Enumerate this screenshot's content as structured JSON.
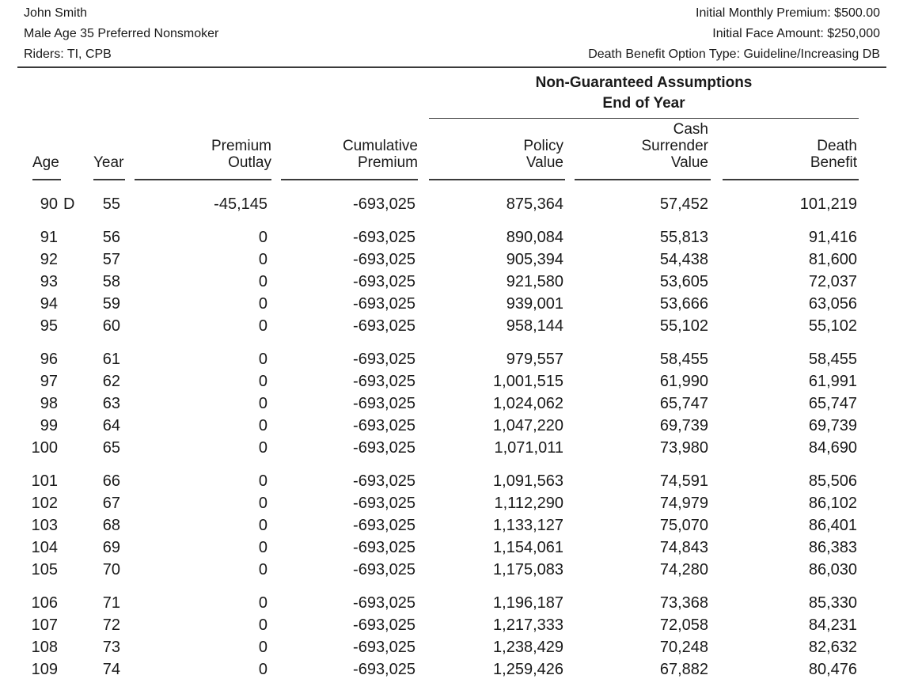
{
  "colors": {
    "text": "#1a1a1a",
    "rule": "#3a3a3a",
    "background": "#ffffff"
  },
  "policy_header": {
    "insured_name": "John Smith",
    "insured_profile": "Male Age 35 Preferred Nonsmoker",
    "riders": "Riders: TI, CPB",
    "initial_monthly_premium": "Initial Monthly Premium: $500.00",
    "initial_face_amount": "Initial Face Amount: $250,000",
    "death_benefit_option_type": "Death Benefit Option Type: Guideline/Increasing DB"
  },
  "table": {
    "span_header": {
      "title": "Non-Guaranteed Assumptions",
      "subtitle": "End of Year"
    },
    "columns": [
      {
        "key": "age",
        "label": "Age"
      },
      {
        "key": "year",
        "label": "Year"
      },
      {
        "key": "premium_outlay",
        "label": "Premium\nOutlay"
      },
      {
        "key": "cumulative_premium",
        "label": "Cumulative\nPremium"
      },
      {
        "key": "policy_value",
        "label": "Policy\nValue"
      },
      {
        "key": "cash_surrender_value",
        "label": "Cash\nSurrender\nValue"
      },
      {
        "key": "death_benefit",
        "label": "Death\nBenefit"
      }
    ],
    "row_groups": [
      {
        "rows": [
          {
            "age": "90",
            "flag": "D",
            "year": "55",
            "premium_outlay": "-45,145",
            "cumulative_premium": "-693,025",
            "policy_value": "875,364",
            "cash_surrender_value": "57,452",
            "death_benefit": "101,219"
          }
        ]
      },
      {
        "rows": [
          {
            "age": "91",
            "flag": "",
            "year": "56",
            "premium_outlay": "0",
            "cumulative_premium": "-693,025",
            "policy_value": "890,084",
            "cash_surrender_value": "55,813",
            "death_benefit": "91,416"
          },
          {
            "age": "92",
            "flag": "",
            "year": "57",
            "premium_outlay": "0",
            "cumulative_premium": "-693,025",
            "policy_value": "905,394",
            "cash_surrender_value": "54,438",
            "death_benefit": "81,600"
          },
          {
            "age": "93",
            "flag": "",
            "year": "58",
            "premium_outlay": "0",
            "cumulative_premium": "-693,025",
            "policy_value": "921,580",
            "cash_surrender_value": "53,605",
            "death_benefit": "72,037"
          },
          {
            "age": "94",
            "flag": "",
            "year": "59",
            "premium_outlay": "0",
            "cumulative_premium": "-693,025",
            "policy_value": "939,001",
            "cash_surrender_value": "53,666",
            "death_benefit": "63,056"
          },
          {
            "age": "95",
            "flag": "",
            "year": "60",
            "premium_outlay": "0",
            "cumulative_premium": "-693,025",
            "policy_value": "958,144",
            "cash_surrender_value": "55,102",
            "death_benefit": "55,102"
          }
        ]
      },
      {
        "rows": [
          {
            "age": "96",
            "flag": "",
            "year": "61",
            "premium_outlay": "0",
            "cumulative_premium": "-693,025",
            "policy_value": "979,557",
            "cash_surrender_value": "58,455",
            "death_benefit": "58,455"
          },
          {
            "age": "97",
            "flag": "",
            "year": "62",
            "premium_outlay": "0",
            "cumulative_premium": "-693,025",
            "policy_value": "1,001,515",
            "cash_surrender_value": "61,990",
            "death_benefit": "61,991"
          },
          {
            "age": "98",
            "flag": "",
            "year": "63",
            "premium_outlay": "0",
            "cumulative_premium": "-693,025",
            "policy_value": "1,024,062",
            "cash_surrender_value": "65,747",
            "death_benefit": "65,747"
          },
          {
            "age": "99",
            "flag": "",
            "year": "64",
            "premium_outlay": "0",
            "cumulative_premium": "-693,025",
            "policy_value": "1,047,220",
            "cash_surrender_value": "69,739",
            "death_benefit": "69,739"
          },
          {
            "age": "100",
            "flag": "",
            "year": "65",
            "premium_outlay": "0",
            "cumulative_premium": "-693,025",
            "policy_value": "1,071,011",
            "cash_surrender_value": "73,980",
            "death_benefit": "84,690"
          }
        ]
      },
      {
        "rows": [
          {
            "age": "101",
            "flag": "",
            "year": "66",
            "premium_outlay": "0",
            "cumulative_premium": "-693,025",
            "policy_value": "1,091,563",
            "cash_surrender_value": "74,591",
            "death_benefit": "85,506"
          },
          {
            "age": "102",
            "flag": "",
            "year": "67",
            "premium_outlay": "0",
            "cumulative_premium": "-693,025",
            "policy_value": "1,112,290",
            "cash_surrender_value": "74,979",
            "death_benefit": "86,102"
          },
          {
            "age": "103",
            "flag": "",
            "year": "68",
            "premium_outlay": "0",
            "cumulative_premium": "-693,025",
            "policy_value": "1,133,127",
            "cash_surrender_value": "75,070",
            "death_benefit": "86,401"
          },
          {
            "age": "104",
            "flag": "",
            "year": "69",
            "premium_outlay": "0",
            "cumulative_premium": "-693,025",
            "policy_value": "1,154,061",
            "cash_surrender_value": "74,843",
            "death_benefit": "86,383"
          },
          {
            "age": "105",
            "flag": "",
            "year": "70",
            "premium_outlay": "0",
            "cumulative_premium": "-693,025",
            "policy_value": "1,175,083",
            "cash_surrender_value": "74,280",
            "death_benefit": "86,030"
          }
        ]
      },
      {
        "rows": [
          {
            "age": "106",
            "flag": "",
            "year": "71",
            "premium_outlay": "0",
            "cumulative_premium": "-693,025",
            "policy_value": "1,196,187",
            "cash_surrender_value": "73,368",
            "death_benefit": "85,330"
          },
          {
            "age": "107",
            "flag": "",
            "year": "72",
            "premium_outlay": "0",
            "cumulative_premium": "-693,025",
            "policy_value": "1,217,333",
            "cash_surrender_value": "72,058",
            "death_benefit": "84,231"
          },
          {
            "age": "108",
            "flag": "",
            "year": "73",
            "premium_outlay": "0",
            "cumulative_premium": "-693,025",
            "policy_value": "1,238,429",
            "cash_surrender_value": "70,248",
            "death_benefit": "82,632"
          },
          {
            "age": "109",
            "flag": "",
            "year": "74",
            "premium_outlay": "0",
            "cumulative_premium": "-693,025",
            "policy_value": "1,259,426",
            "cash_surrender_value": "67,882",
            "death_benefit": "80,476"
          }
        ]
      }
    ]
  }
}
